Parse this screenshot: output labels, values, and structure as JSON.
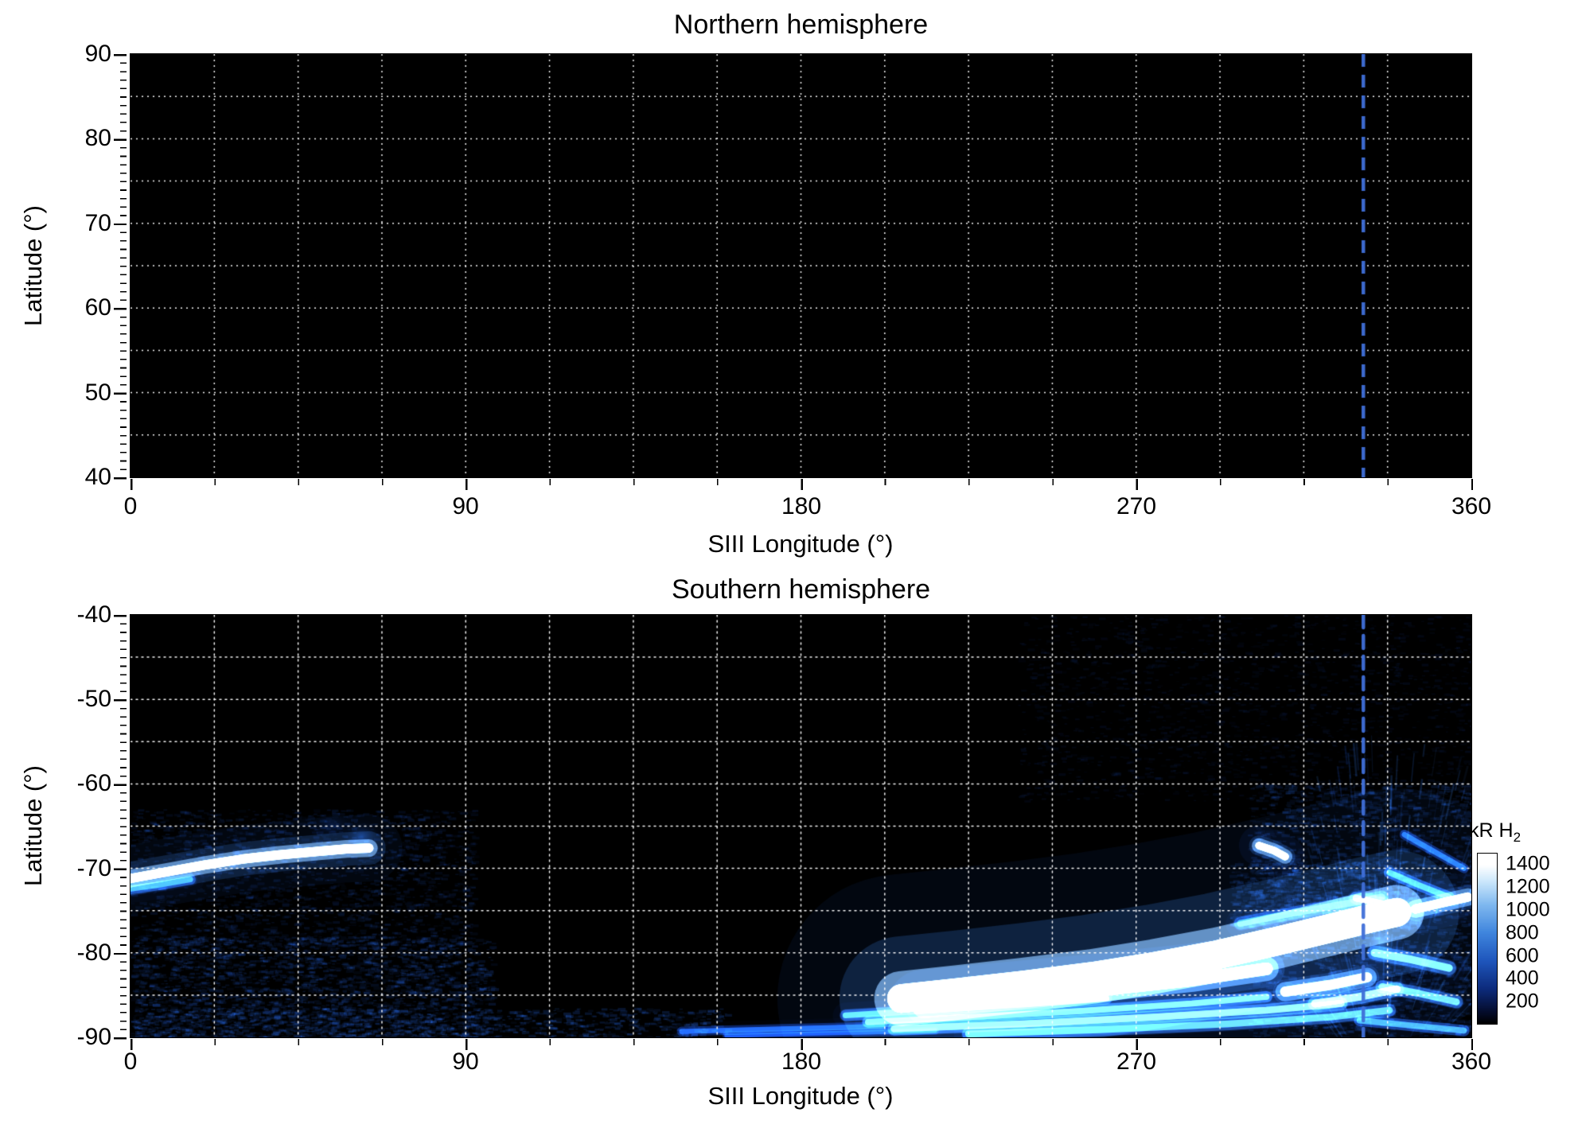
{
  "chart_data": {
    "type": "heatmap",
    "description": "Polar projection maps of H2 auroral emission versus SIII longitude and latitude for both hemispheres; northern map shows no emission, southern map shows a bright dawn-side arc near -68 latitude (longitude 0-65) and an intense curved emission region between longitudes 200-360 at latitudes -75 to -90.",
    "marker_longitude": 331,
    "marker_color": "#3f6fd8",
    "colormap": {
      "stops": [
        [
          0,
          "#000000"
        ],
        [
          120,
          "#050f33"
        ],
        [
          300,
          "#0c2a7a"
        ],
        [
          550,
          "#1e55bb"
        ],
        [
          800,
          "#3f85dd"
        ],
        [
          1050,
          "#7fb8ef"
        ],
        [
          1250,
          "#c9e6fb"
        ],
        [
          1400,
          "#ffffff"
        ]
      ]
    },
    "panels": [
      {
        "id": "north",
        "title": "Northern hemisphere",
        "xlabel": "SIII Longitude (°)",
        "ylabel": "Latitude (°)",
        "lon_range": [
          0,
          360
        ],
        "lat_top": 90,
        "lat_bottom": 40,
        "xticks": [
          0,
          90,
          180,
          270,
          360
        ],
        "yticks": [
          90,
          80,
          70,
          60,
          50,
          40
        ],
        "grid_lon_step": 22.5,
        "grid_lat_step": 5,
        "features": []
      },
      {
        "id": "south",
        "title": "Southern hemisphere",
        "xlabel": "SIII Longitude (°)",
        "ylabel": "Latitude (°)",
        "lon_range": [
          0,
          360
        ],
        "lat_top": -40,
        "lat_bottom": -90,
        "xticks": [
          0,
          90,
          180,
          270,
          360
        ],
        "yticks": [
          -40,
          -50,
          -60,
          -70,
          -80,
          -90
        ],
        "grid_lon_step": 22.5,
        "grid_lat_step": 5,
        "features": [
          {
            "type": "noise",
            "lon": [
              0,
              92
            ],
            "lat": [
              -63,
              -79
            ],
            "count": 2000,
            "intensity": 430,
            "alpha": 0.2,
            "size": 3.2
          },
          {
            "type": "noise",
            "lon": [
              0,
              97
            ],
            "lat": [
              -78,
              -90
            ],
            "count": 2600,
            "intensity": 470,
            "alpha": 0.24,
            "size": 3.4
          },
          {
            "type": "noise",
            "lon": [
              0,
              160
            ],
            "lat": [
              -86.5,
              -90
            ],
            "count": 1000,
            "intensity": 520,
            "alpha": 0.28,
            "size": 3.2
          },
          {
            "type": "noise",
            "lon": [
              238,
              360
            ],
            "lat": [
              -40,
              -62
            ],
            "count": 1700,
            "intensity": 340,
            "alpha": 0.15,
            "size": 3
          },
          {
            "type": "noise",
            "lon": [
              300,
              360
            ],
            "lat": [
              -60,
              -90
            ],
            "count": 2400,
            "intensity": 500,
            "alpha": 0.22,
            "size": 3.6
          },
          {
            "type": "noise",
            "lon": [
              295,
              345
            ],
            "lat": [
              -69,
              -77
            ],
            "count": 800,
            "intensity": 540,
            "alpha": 0.2,
            "size": 3.6
          },
          {
            "type": "streaks",
            "lon": [
              316,
              360
            ],
            "lat": [
              -56,
              -89
            ],
            "count": 170,
            "focus": [
              336,
              -97
            ],
            "len": [
              14,
              48
            ],
            "intensity": 620,
            "alpha": 0.28
          },
          {
            "type": "arc",
            "points": [
              [
                0,
                -71.2
              ],
              [
                10,
                -70.4
              ],
              [
                20,
                -69.6
              ],
              [
                30,
                -68.9
              ],
              [
                40,
                -68.4
              ],
              [
                50,
                -68.0
              ],
              [
                58,
                -67.7
              ],
              [
                64,
                -67.6
              ]
            ],
            "width": 1.1,
            "intensity": 1460,
            "glow": 3.0
          },
          {
            "type": "arc",
            "points": [
              [
                0,
                -72.4
              ],
              [
                8,
                -71.9
              ],
              [
                16,
                -71.3
              ]
            ],
            "width": 0.7,
            "intensity": 680,
            "glow": 2.0
          },
          {
            "type": "blob",
            "center": [
              62,
              -66.2
            ],
            "rx": 6,
            "ry": 2.2,
            "intensity": 520,
            "alpha": 0.5
          },
          {
            "type": "blob",
            "center": [
              54,
              -64.9
            ],
            "rx": 7,
            "ry": 1.8,
            "intensity": 390,
            "alpha": 0.38
          },
          {
            "type": "arc",
            "points": [
              [
                207,
                -85.4
              ],
              [
                222,
                -84.7
              ],
              [
                240,
                -83.8
              ],
              [
                258,
                -82.8
              ],
              [
                275,
                -81.6
              ],
              [
                292,
                -80.2
              ],
              [
                308,
                -78.6
              ],
              [
                322,
                -77.1
              ],
              [
                333,
                -75.9
              ],
              [
                340,
                -75.2
              ]
            ],
            "width": 3.4,
            "intensity": 1500,
            "glow": 3.6
          },
          {
            "type": "arc",
            "points": [
              [
                213,
                -86.3
              ],
              [
                235,
                -85.4
              ],
              [
                260,
                -84.4
              ],
              [
                285,
                -83.2
              ],
              [
                305,
                -81.9
              ]
            ],
            "width": 1.5,
            "intensity": 1320,
            "glow": 2.4
          },
          {
            "type": "arc",
            "points": [
              [
                192,
                -87.4
              ],
              [
                215,
                -86.8
              ],
              [
                240,
                -86.1
              ],
              [
                262,
                -85.4
              ]
            ],
            "width": 0.7,
            "intensity": 820,
            "glow": 1.8
          },
          {
            "type": "arc",
            "points": [
              [
                198,
                -88.2
              ],
              [
                225,
                -87.6
              ],
              [
                255,
                -86.9
              ],
              [
                285,
                -86.0
              ],
              [
                305,
                -85.2
              ]
            ],
            "width": 0.7,
            "intensity": 920,
            "glow": 1.8
          },
          {
            "type": "arc",
            "points": [
              [
                205,
                -89.0
              ],
              [
                240,
                -88.4
              ],
              [
                275,
                -87.6
              ],
              [
                305,
                -86.8
              ],
              [
                325,
                -86.0
              ]
            ],
            "width": 0.8,
            "intensity": 1000,
            "glow": 1.8
          },
          {
            "type": "arc",
            "points": [
              [
                225,
                -89.6
              ],
              [
                260,
                -89.1
              ],
              [
                295,
                -88.4
              ],
              [
                322,
                -87.6
              ],
              [
                338,
                -86.8
              ]
            ],
            "width": 0.8,
            "intensity": 860,
            "glow": 1.8
          },
          {
            "type": "arc",
            "points": [
              [
                148,
                -89.3
              ],
              [
                175,
                -89.0
              ],
              [
                202,
                -88.7
              ]
            ],
            "width": 0.6,
            "intensity": 480,
            "glow": 1.5
          },
          {
            "type": "arc",
            "points": [
              [
                160,
                -89.8
              ],
              [
                190,
                -89.5
              ],
              [
                216,
                -89.2
              ]
            ],
            "width": 0.5,
            "intensity": 400,
            "glow": 1.4
          },
          {
            "type": "arc",
            "points": [
              [
                310,
                -84.6
              ],
              [
                322,
                -83.8
              ],
              [
                332,
                -82.9
              ]
            ],
            "width": 1.2,
            "intensity": 1240,
            "glow": 2.0
          },
          {
            "type": "arc",
            "points": [
              [
                318,
                -86.0
              ],
              [
                330,
                -85.2
              ],
              [
                340,
                -84.3
              ]
            ],
            "width": 0.9,
            "intensity": 1080,
            "glow": 1.9
          },
          {
            "type": "blob",
            "center": [
              336,
              -79.0
            ],
            "rx": 5,
            "ry": 2.5,
            "intensity": 820,
            "alpha": 0.5
          },
          {
            "type": "arc",
            "points": [
              [
                298,
                -76.5
              ],
              [
                312,
                -75.3
              ],
              [
                326,
                -74.2
              ],
              [
                336,
                -73.4
              ]
            ],
            "width": 0.8,
            "intensity": 700,
            "glow": 1.8
          },
          {
            "type": "arc",
            "points": [
              [
                329,
                -73.5
              ],
              [
                336,
                -74.2
              ],
              [
                342,
                -75.0
              ]
            ],
            "width": 0.8,
            "intensity": 900,
            "glow": 1.9
          },
          {
            "type": "arc",
            "points": [
              [
                345,
                -74.8
              ],
              [
                352,
                -74.1
              ],
              [
                359,
                -73.4
              ]
            ],
            "width": 1.1,
            "intensity": 1360,
            "glow": 2.2
          },
          {
            "type": "arc",
            "points": [
              [
                303,
                -67.3
              ],
              [
                307,
                -67.9
              ],
              [
                310,
                -68.6
              ]
            ],
            "width": 0.9,
            "intensity": 1420,
            "glow": 2.2
          },
          {
            "type": "arc",
            "points": [
              [
                338,
                -70.5
              ],
              [
                346,
                -72.0
              ],
              [
                354,
                -73.4
              ]
            ],
            "width": 0.7,
            "intensity": 780,
            "glow": 1.6
          },
          {
            "type": "arc",
            "points": [
              [
                342,
                -66.0
              ],
              [
                350,
                -68.0
              ],
              [
                358,
                -70.0
              ]
            ],
            "width": 0.6,
            "intensity": 540,
            "glow": 1.5
          },
          {
            "type": "arc",
            "points": [
              [
                334,
                -80.0
              ],
              [
                344,
                -80.8
              ],
              [
                354,
                -81.8
              ]
            ],
            "width": 0.9,
            "intensity": 950,
            "glow": 1.8
          },
          {
            "type": "arc",
            "points": [
              [
                336,
                -84.0
              ],
              [
                346,
                -84.8
              ],
              [
                356,
                -85.8
              ]
            ],
            "width": 0.8,
            "intensity": 900,
            "glow": 1.8
          },
          {
            "type": "arc",
            "points": [
              [
                330,
                -88.0
              ],
              [
                344,
                -88.6
              ],
              [
                358,
                -89.2
              ]
            ],
            "width": 0.7,
            "intensity": 740,
            "glow": 1.6
          }
        ]
      }
    ],
    "colorbar": {
      "label_main": "kR H",
      "label_sub": "2",
      "ticks": [
        1400,
        1200,
        1000,
        800,
        600,
        400,
        200
      ],
      "vmin": 0,
      "vmax": 1500
    }
  }
}
